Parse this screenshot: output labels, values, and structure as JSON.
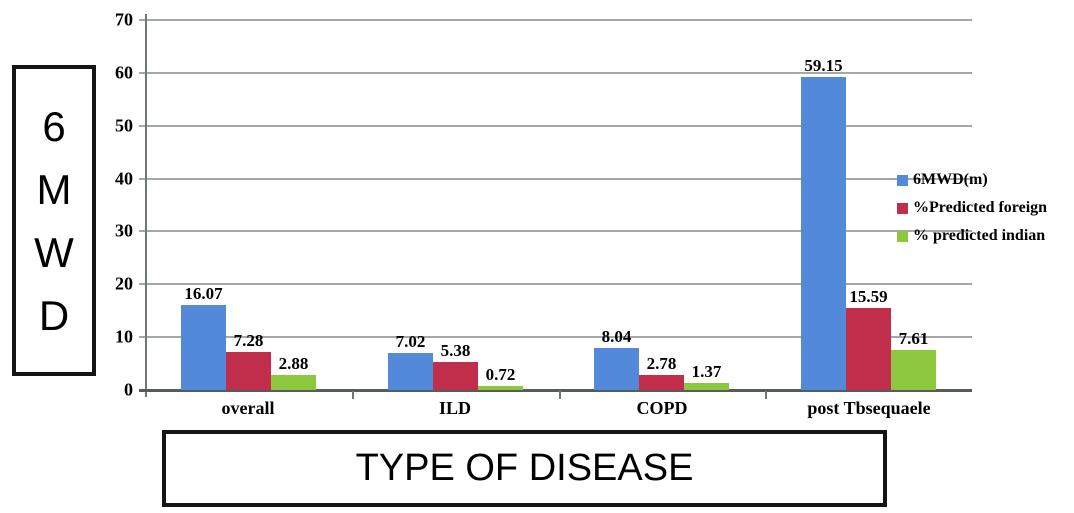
{
  "chart_data": {
    "type": "bar",
    "title": "",
    "categories": [
      "overall",
      "ILD",
      "COPD",
      "post Tbsequaele"
    ],
    "series": [
      {
        "name": "6MWD(m)",
        "color": "#5289D8",
        "values": [
          16.07,
          7.02,
          8.04,
          59.15
        ]
      },
      {
        "name": "%Predicted foreign",
        "color": "#C02E4C",
        "values": [
          7.28,
          5.38,
          2.78,
          15.59
        ]
      },
      {
        "name": "% predicted indian",
        "color": "#8DC73E",
        "values": [
          2.88,
          0.72,
          1.37,
          7.61
        ]
      }
    ],
    "data_labels": [
      [
        "16.07",
        "7.02",
        "8.04",
        "59.15"
      ],
      [
        "7.28",
        "5.38",
        "2.78",
        "15.59"
      ],
      [
        "2.88",
        "0.72",
        "1.37",
        "7.61"
      ]
    ],
    "xlabel": "TYPE OF DISEASE",
    "ylabel": "6 MWD",
    "ylim": [
      0,
      70
    ],
    "yticks": [
      0,
      10,
      20,
      30,
      40,
      50,
      60,
      70
    ],
    "grid": true,
    "legend_position": "right"
  },
  "y_axis_box": {
    "lines": [
      "6",
      "M",
      "W",
      "D"
    ]
  },
  "x_axis_box": {
    "label": "TYPE OF DISEASE"
  },
  "colors": {
    "gridline": "#A2A9A9",
    "axis": "#6E7677",
    "x_axis_line": "#565C5D",
    "background": "#FFFFFF",
    "text": "#000000"
  }
}
